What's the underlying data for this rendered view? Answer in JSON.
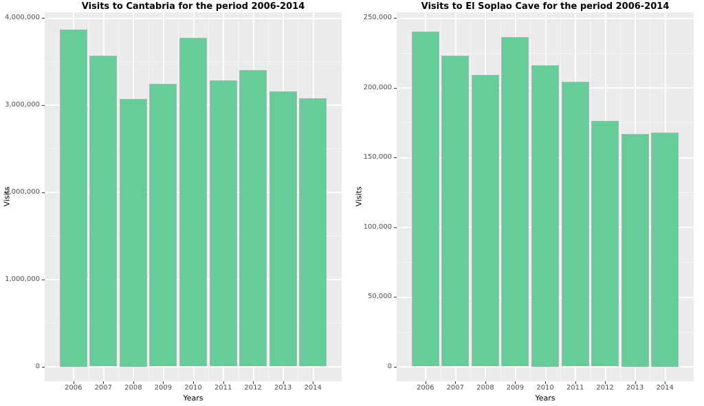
{
  "style": {
    "bar_fill": "#66CC99",
    "bar_border": "#B3B3B3",
    "panel_bg": "#EBEBEB",
    "grid_major": "#FFFFFF",
    "grid_minor": "#F4F4F4",
    "tick_label_color": "#4D4D4D",
    "tick_mark_color": "#333333",
    "title_color": "#000000",
    "figure_bg": "#FFFFFF"
  },
  "chart_data": [
    {
      "type": "bar",
      "title": "Visits to Cantabria for the period 2006-2014",
      "xlabel": "Years",
      "ylabel": "Visits",
      "categories": [
        "2006",
        "2007",
        "2008",
        "2009",
        "2010",
        "2011",
        "2012",
        "2013",
        "2014"
      ],
      "values": [
        3870000,
        3570000,
        3070000,
        3240000,
        3770000,
        3280000,
        3400000,
        3160000,
        3080000
      ],
      "ylim": [
        0,
        4000000
      ],
      "yticks": [
        {
          "v": 0,
          "label": "0"
        },
        {
          "v": 1000000,
          "label": "1,000,000"
        },
        {
          "v": 2000000,
          "label": "2,000,000"
        },
        {
          "v": 3000000,
          "label": "3,000,000"
        },
        {
          "v": 4000000,
          "label": "4,000,000"
        }
      ],
      "yminor": [
        500000,
        1500000,
        2500000,
        3500000
      ],
      "grid": true,
      "legend": "none"
    },
    {
      "type": "bar",
      "title": "Visits to El Soplao Cave for the period 2006-2014",
      "xlabel": "Years",
      "ylabel": "Visits",
      "categories": [
        "2006",
        "2007",
        "2008",
        "2009",
        "2010",
        "2011",
        "2012",
        "2013",
        "2014"
      ],
      "values": [
        240000,
        223000,
        209000,
        236000,
        216000,
        204000,
        176000,
        167000,
        168000
      ],
      "ylim": [
        0,
        250000
      ],
      "yticks": [
        {
          "v": 0,
          "label": "0"
        },
        {
          "v": 50000,
          "label": "50,000"
        },
        {
          "v": 100000,
          "label": "100,000"
        },
        {
          "v": 150000,
          "label": "150,000"
        },
        {
          "v": 200000,
          "label": "200,000"
        },
        {
          "v": 250000,
          "label": "250,000"
        }
      ],
      "yminor": [
        25000,
        75000,
        125000,
        175000,
        225000
      ],
      "grid": true,
      "legend": "none"
    }
  ]
}
